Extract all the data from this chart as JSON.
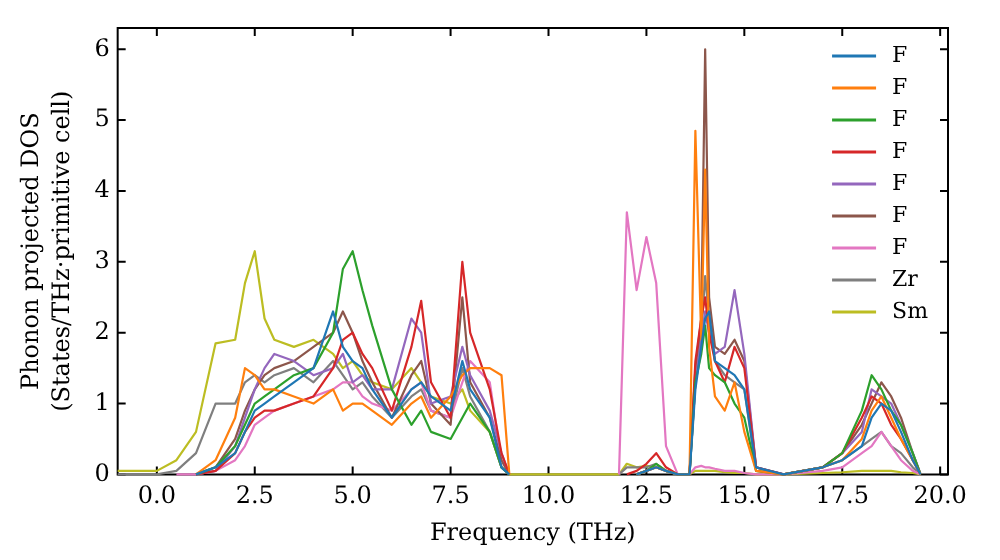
{
  "chart_data": {
    "type": "line",
    "xlabel": "Frequency (THz)",
    "ylabel": "Phonon projected DOS\n(States/THz·primitive cell)",
    "x": [
      -1,
      0,
      0.5,
      1,
      1.5,
      2,
      2.25,
      2.5,
      2.75,
      3,
      3.5,
      4,
      4.5,
      4.75,
      5,
      5.25,
      5.5,
      6,
      6.5,
      6.75,
      7,
      7.5,
      7.8,
      8,
      8.5,
      8.8,
      9,
      10,
      11.8,
      12,
      12.25,
      12.5,
      12.75,
      13,
      13.3,
      13.6,
      13.75,
      13.9,
      14,
      14.1,
      14.25,
      14.5,
      14.75,
      15,
      15.3,
      16,
      17,
      17.5,
      18,
      18.25,
      18.5,
      18.75,
      19,
      19.3,
      19.5
    ],
    "xlim": [
      -1,
      20.2
    ],
    "ylim": [
      0,
      6.3
    ],
    "xticks": [
      {
        "value": 0,
        "label": "0.0"
      },
      {
        "value": 2.5,
        "label": "2.5"
      },
      {
        "value": 5,
        "label": "5.0"
      },
      {
        "value": 7.5,
        "label": "7.5"
      },
      {
        "value": 10,
        "label": "10.0"
      },
      {
        "value": 12.5,
        "label": "12.5"
      },
      {
        "value": 15,
        "label": "15.0"
      },
      {
        "value": 17.5,
        "label": "17.5"
      },
      {
        "value": 20,
        "label": "20.0"
      }
    ],
    "yticks": [
      0,
      1,
      2,
      3,
      4,
      5,
      6
    ],
    "grid": false,
    "legend": "top right",
    "marker": "none",
    "line_style": "solid",
    "series": [
      {
        "name": "F",
        "color": "#1f77b4",
        "values": [
          null,
          null,
          null,
          0,
          0.1,
          0.3,
          0.6,
          0.9,
          1.0,
          1.1,
          1.3,
          1.5,
          2.3,
          1.8,
          1.6,
          1.5,
          1.2,
          0.8,
          1.2,
          1.3,
          1.1,
          0.9,
          1.6,
          1.2,
          0.8,
          0.1,
          0,
          null,
          null,
          null,
          0,
          0.05,
          0.1,
          0.05,
          0,
          0,
          1.2,
          1.8,
          2.2,
          2.3,
          1.6,
          1.5,
          1.4,
          1.2,
          0.1,
          0,
          0.1,
          0.2,
          0.4,
          0.8,
          1.0,
          0.9,
          0.6,
          0.2,
          0
        ]
      },
      {
        "name": "F",
        "color": "#ff7f0e",
        "values": [
          null,
          null,
          null,
          0,
          0.2,
          0.8,
          1.5,
          1.4,
          1.2,
          1.2,
          1.1,
          1.0,
          1.2,
          0.9,
          1.0,
          1.0,
          0.9,
          0.7,
          1.0,
          1.1,
          0.8,
          1.1,
          1.4,
          1.5,
          1.5,
          1.4,
          0,
          null,
          null,
          null,
          0,
          0.05,
          0.1,
          0.05,
          0,
          0,
          4.85,
          1.9,
          4.3,
          1.8,
          1.1,
          0.9,
          1.3,
          0.6,
          0.05,
          0,
          0.1,
          0.2,
          0.5,
          0.9,
          1.1,
          0.8,
          0.5,
          0.2,
          0
        ]
      },
      {
        "name": "F",
        "color": "#2ca02c",
        "values": [
          null,
          null,
          null,
          0,
          0.1,
          0.4,
          0.7,
          1.0,
          1.1,
          1.2,
          1.4,
          1.5,
          2.0,
          2.9,
          3.15,
          2.6,
          2.1,
          1.2,
          0.7,
          0.9,
          0.6,
          0.5,
          0.8,
          1.0,
          0.6,
          0.1,
          0,
          null,
          null,
          null,
          0,
          0.05,
          0.15,
          0.05,
          0,
          0,
          1.3,
          1.7,
          2.1,
          1.5,
          1.4,
          1.3,
          1.0,
          0.8,
          0.05,
          0,
          0.1,
          0.3,
          0.9,
          1.4,
          1.2,
          0.9,
          0.7,
          0.3,
          0
        ]
      },
      {
        "name": "F",
        "color": "#d62728",
        "values": [
          null,
          null,
          null,
          0,
          0.05,
          0.3,
          0.6,
          0.8,
          0.9,
          0.9,
          1.0,
          1.1,
          1.5,
          1.9,
          2.0,
          1.7,
          1.5,
          0.9,
          1.8,
          2.45,
          1.3,
          0.8,
          3.0,
          2.0,
          1.2,
          0.3,
          0,
          null,
          null,
          0,
          0.05,
          0.15,
          0.3,
          0.1,
          0,
          0,
          1.6,
          2.2,
          2.5,
          2.0,
          1.6,
          1.3,
          1.8,
          1.5,
          0.1,
          0,
          0.1,
          0.3,
          0.8,
          1.1,
          1.0,
          0.7,
          0.5,
          0.2,
          0
        ]
      },
      {
        "name": "F",
        "color": "#9467bd",
        "values": [
          null,
          null,
          null,
          0,
          0.05,
          0.4,
          0.8,
          1.2,
          1.5,
          1.7,
          1.6,
          1.4,
          1.5,
          1.7,
          1.3,
          1.4,
          1.2,
          1.2,
          2.2,
          2.0,
          1.0,
          1.1,
          1.8,
          1.4,
          0.9,
          0.3,
          0,
          null,
          null,
          null,
          0,
          0.05,
          0.1,
          0.05,
          0,
          0,
          1.3,
          1.9,
          2.3,
          2.0,
          1.7,
          1.8,
          2.6,
          1.7,
          0.1,
          0,
          0.1,
          0.3,
          0.6,
          1.2,
          1.1,
          1.0,
          0.7,
          0.3,
          0
        ]
      },
      {
        "name": "F",
        "color": "#8c564b",
        "values": [
          null,
          null,
          null,
          0,
          0.1,
          0.5,
          0.9,
          1.2,
          1.4,
          1.5,
          1.6,
          1.8,
          2.0,
          2.3,
          2.0,
          1.6,
          1.3,
          0.8,
          1.4,
          1.6,
          1.0,
          0.7,
          2.5,
          1.3,
          0.8,
          0.2,
          0,
          null,
          null,
          null,
          0,
          0.05,
          0.1,
          0.05,
          0,
          0,
          1.5,
          2.2,
          6.0,
          2.5,
          1.8,
          1.7,
          1.9,
          1.6,
          0.1,
          0,
          0.1,
          0.3,
          0.7,
          1.0,
          1.3,
          1.1,
          0.8,
          0.3,
          0
        ]
      },
      {
        "name": "F",
        "color": "#e377c2",
        "values": [
          null,
          null,
          0,
          0,
          0.05,
          0.2,
          0.4,
          0.7,
          0.8,
          0.9,
          1.0,
          1.1,
          1.2,
          1.3,
          1.3,
          1.1,
          1.0,
          0.9,
          1.2,
          1.3,
          0.9,
          0.8,
          1.3,
          1.6,
          1.3,
          0.2,
          0,
          null,
          0,
          3.7,
          2.6,
          3.35,
          2.7,
          0.4,
          0,
          0,
          0.1,
          0.12,
          0.1,
          0.1,
          0.08,
          0.05,
          0.05,
          0.02,
          0,
          0,
          0.05,
          0.1,
          0.3,
          0.4,
          0.6,
          0.4,
          0.2,
          0.05,
          0
        ]
      },
      {
        "name": "Zr",
        "color": "#7f7f7f",
        "values": [
          0,
          0,
          0.05,
          0.3,
          1.0,
          1.0,
          1.3,
          1.4,
          1.3,
          1.4,
          1.5,
          1.3,
          1.6,
          1.4,
          1.2,
          1.3,
          1.1,
          0.8,
          1.1,
          1.2,
          0.9,
          0.8,
          1.5,
          1.1,
          0.6,
          0.1,
          0,
          null,
          0,
          0.1,
          0.1,
          0.1,
          0.15,
          0.05,
          0,
          0,
          1.3,
          2.0,
          2.8,
          2.2,
          1.6,
          1.4,
          1.3,
          1.2,
          0.05,
          0,
          0.1,
          0.2,
          0.4,
          0.5,
          0.6,
          0.4,
          0.3,
          0.1,
          0
        ]
      },
      {
        "name": "Sm",
        "color": "#bcbd22",
        "values": [
          0.05,
          0.05,
          0.2,
          0.6,
          1.85,
          1.9,
          2.7,
          3.15,
          2.2,
          1.9,
          1.8,
          1.9,
          1.7,
          1.5,
          1.6,
          1.4,
          1.3,
          1.2,
          1.5,
          1.3,
          1.1,
          1.0,
          1.2,
          0.9,
          0.6,
          0.1,
          0,
          0,
          0,
          0.15,
          0.1,
          0.12,
          0.1,
          0.05,
          0,
          0,
          0.05,
          0.05,
          0.05,
          0.05,
          0.05,
          0.03,
          0.02,
          0.02,
          0,
          0,
          0.02,
          0.03,
          0.05,
          0.05,
          0.05,
          0.05,
          0.03,
          0.02,
          0
        ]
      }
    ]
  }
}
